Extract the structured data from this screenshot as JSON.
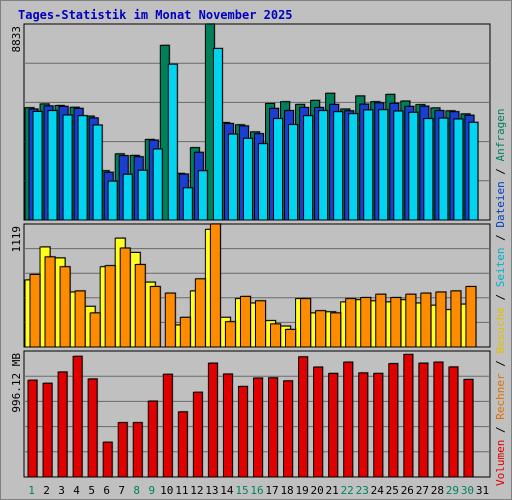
{
  "chart_data": {
    "type": "bar",
    "title": "Tages-Statistik im Monat November 2025",
    "categories": [
      "1",
      "2",
      "3",
      "4",
      "5",
      "6",
      "7",
      "8",
      "9",
      "10",
      "11",
      "12",
      "13",
      "14",
      "15",
      "16",
      "17",
      "18",
      "19",
      "20",
      "21",
      "22",
      "23",
      "24",
      "25",
      "26",
      "27",
      "28",
      "29",
      "30",
      "31"
    ],
    "weekend_days": [
      "1",
      "8",
      "9",
      "15",
      "16",
      "22",
      "23",
      "29",
      "30"
    ],
    "right_legend": [
      {
        "text": "Volumen",
        "color": "#e00000"
      },
      {
        "text": " / ",
        "color": "#000000"
      },
      {
        "text": "Rechner",
        "color": "#e07000"
      },
      {
        "text": " / ",
        "color": "#000000"
      },
      {
        "text": "Besuche",
        "color": "#e0c000"
      },
      {
        "text": " / ",
        "color": "#000000"
      },
      {
        "text": "Seiten",
        "color": "#00b0d0"
      },
      {
        "text": " / ",
        "color": "#000000"
      },
      {
        "text": "Dateien",
        "color": "#0040c0"
      },
      {
        "text": " / ",
        "color": "#000000"
      },
      {
        "text": "Anfragen",
        "color": "#008060"
      }
    ],
    "panels": [
      {
        "id": "top",
        "ymax_label": "8833",
        "ymax": 8833,
        "series": [
          {
            "name": "Anfragen",
            "color": "#00805a",
            "values": [
              5060,
              5230,
              5160,
              5080,
              4680,
              2220,
              2980,
              2910,
              3630,
              7870,
              2100,
              3260,
              8833,
              4390,
              4290,
              3970,
              5250,
              5330,
              5210,
              5390,
              5710,
              5000,
              5590,
              5330,
              5660,
              5360,
              5200,
              5050,
              4920,
              4780,
              0
            ]
          },
          {
            "name": "Dateien",
            "color": "#1a3fd0",
            "values": [
              5000,
              5140,
              5120,
              5030,
              4600,
              2150,
              2900,
              2850,
              3600,
              0,
              2070,
              3050,
              0,
              4350,
              4240,
              3890,
              5030,
              4930,
              5070,
              5070,
              5210,
              4920,
              5220,
              5280,
              5260,
              5120,
              5130,
              4930,
              4880,
              4720,
              0
            ]
          },
          {
            "name": "Seiten",
            "color": "#00d4f0",
            "values": [
              4890,
              4930,
              4730,
              4700,
              4280,
              1750,
              2060,
              2240,
              3200,
              7020,
              1450,
              2220,
              7730,
              3870,
              3680,
              3440,
              4570,
              4300,
              4700,
              4930,
              4880,
              4790,
              4960,
              4970,
              4910,
              4850,
              4570,
              4590,
              4550,
              4400,
              0
            ]
          }
        ]
      },
      {
        "id": "middle",
        "ymax_label": "1119",
        "ymax": 1119,
        "series": [
          {
            "name": "Besuche",
            "color": "#ffff20",
            "values": [
              610,
              910,
              810,
              500,
              370,
              730,
              990,
              860,
              590,
              0,
              200,
              510,
              1070,
              270,
              440,
              400,
              240,
              190,
              440,
              310,
              320,
              410,
              430,
              420,
              410,
              430,
              400,
              380,
              340,
              390,
              0
            ]
          },
          {
            "name": "Rechner",
            "color": "#ff8c00",
            "values": [
              660,
              820,
              730,
              510,
              310,
              740,
              900,
              750,
              550,
              490,
              270,
              620,
              1119,
              230,
              460,
              420,
              210,
              160,
              440,
              330,
              310,
              440,
              450,
              480,
              450,
              480,
              490,
              500,
              510,
              550,
              0
            ]
          }
        ]
      },
      {
        "id": "bottom",
        "ymax_label": "996.12 MB",
        "ymax": 996.12,
        "series": [
          {
            "name": "Volumen",
            "color": "#e00000",
            "values": [
              765,
              741,
              830,
              954,
              775,
              275,
              430,
              430,
              600,
              812,
              515,
              670,
              900,
              814,
              716,
              782,
              784,
              760,
              950,
              869,
              819,
              908,
              823,
              819,
              896,
              969,
              900,
              908,
              870,
              771,
              0
            ]
          }
        ]
      }
    ]
  }
}
